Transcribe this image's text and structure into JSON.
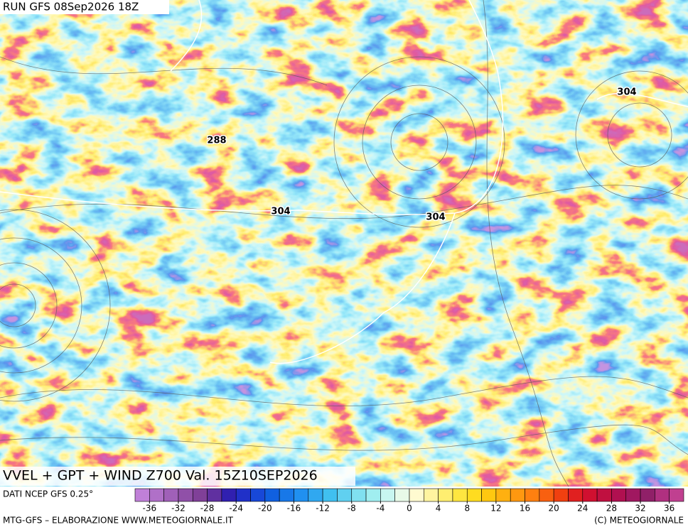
{
  "header": {
    "run": "RUN GFS 08Sep2026 18Z",
    "product": "VVEL + GPT + WIND Z700 Val. 15Z10SEP2026"
  },
  "map": {
    "contour_labels": [
      288,
      304,
      304,
      304
    ]
  },
  "colorbar": {
    "source": "DATI NCEP GFS 0.25°",
    "lim": [
      -38,
      38
    ],
    "colors": [
      "#c080d8",
      "#b070c8",
      "#a060b8",
      "#9050a8",
      "#804098",
      "#6030a0",
      "#3020b0",
      "#2030c8",
      "#1848d8",
      "#1060e0",
      "#1878e8",
      "#2090f0",
      "#30a8f0",
      "#40c0f0",
      "#60d0f0",
      "#80e0f0",
      "#a0eef0",
      "#c8f6f0",
      "#e8fae8",
      "#fffad0",
      "#fff4a0",
      "#ffee70",
      "#ffe640",
      "#ffdc20",
      "#ffc810",
      "#ffb010",
      "#ff9810",
      "#ff8010",
      "#f86010",
      "#f04010",
      "#e02020",
      "#d01030",
      "#c01040",
      "#b01050",
      "#a01860",
      "#902068",
      "#b03080",
      "#c04090"
    ],
    "ticks": [
      -36,
      -32,
      -28,
      -24,
      -20,
      -16,
      -12,
      -8,
      -4,
      0,
      4,
      8,
      12,
      16,
      20,
      24,
      28,
      32,
      36
    ]
  },
  "footer": {
    "left": "MTG-GFS – ELABORAZIONE WWW.METEOGIORNALE.IT",
    "right": "(C) METEOGIORNALE"
  }
}
